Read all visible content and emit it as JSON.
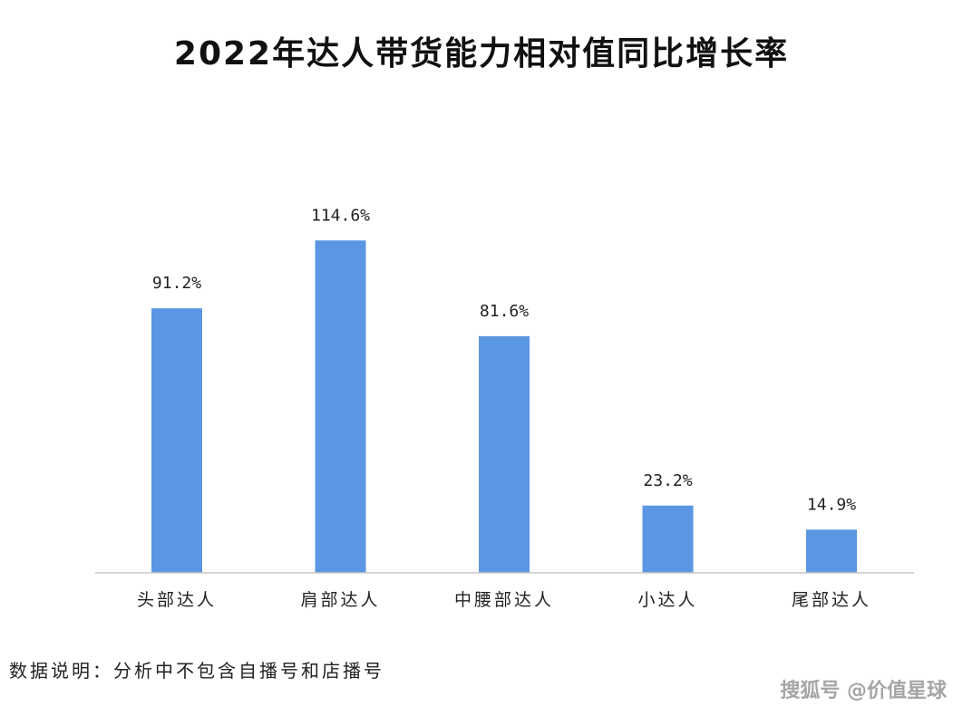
{
  "chart_data": {
    "type": "bar",
    "title": "2022年达人带货能力相对值同比增长率",
    "categories": [
      "头部达人",
      "肩部达人",
      "中腰部达人",
      "小达人",
      "尾部达人"
    ],
    "values": [
      91.2,
      114.6,
      81.6,
      23.2,
      14.9
    ],
    "value_labels": [
      "91.2%",
      "114.6%",
      "81.6%",
      "23.2%",
      "14.9%"
    ],
    "bar_color": "#5b96e3",
    "ylim": [
      0,
      120
    ],
    "grid": false,
    "legend": "none"
  },
  "footnote": "数据说明：分析中不包含自播号和店播号",
  "watermark": "搜狐号 @价值星球"
}
